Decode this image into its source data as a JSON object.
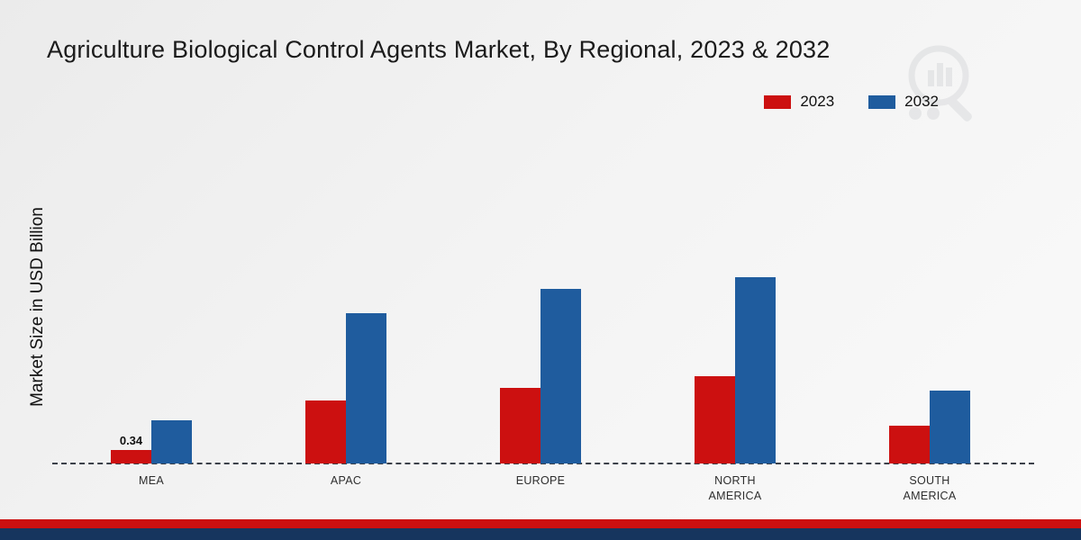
{
  "title": "Agriculture Biological Control Agents Market, By Regional, 2023 & 2032",
  "ylabel": "Market Size in USD Billion",
  "colors": {
    "series_2023": "#cc1010",
    "series_2032": "#1f5c9e",
    "band_red": "#cc1010",
    "band_navy": "#16355e",
    "baseline": "#3c414a"
  },
  "legend": {
    "items": [
      {
        "label": "2023"
      },
      {
        "label": "2032"
      }
    ]
  },
  "chart_data": {
    "type": "bar",
    "title": "Agriculture Biological Control Agents Market, By Regional, 2023 & 2032",
    "xlabel": "",
    "ylabel": "Market Size in USD Billion",
    "categories": [
      "MEA",
      "APAC",
      "EUROPE",
      "NORTH AMERICA",
      "SOUTH AMERICA"
    ],
    "series": [
      {
        "name": "2023",
        "color": "#cc1010",
        "values": [
          0.34,
          1.6,
          1.9,
          2.2,
          0.95
        ]
      },
      {
        "name": "2032",
        "color": "#1f5c9e",
        "values": [
          1.1,
          3.8,
          4.4,
          4.7,
          1.85
        ]
      }
    ],
    "annotations": [
      {
        "category": "MEA",
        "series": "2023",
        "text": "0.34"
      }
    ],
    "ylim": [
      0,
      5
    ],
    "grid": false,
    "legend_position": "top-right"
  }
}
